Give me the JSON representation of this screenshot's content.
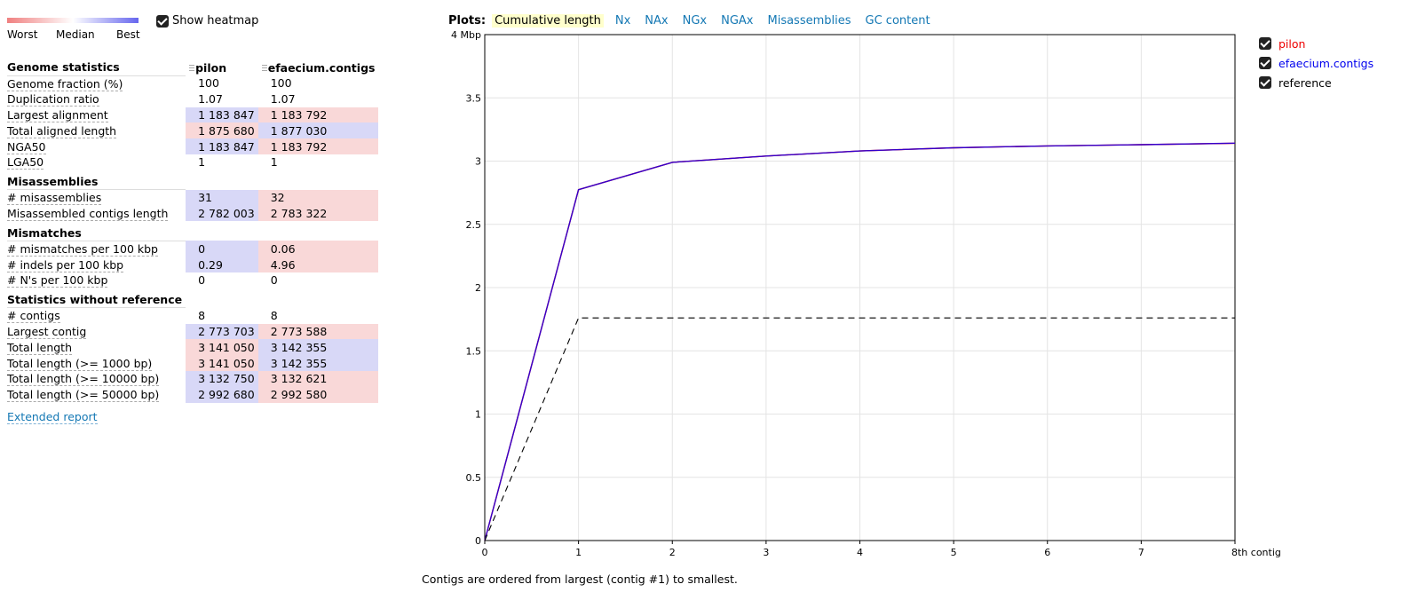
{
  "heatmap": {
    "worst_label": "Worst",
    "median_label": "Median",
    "best_label": "Best",
    "toggle_label": "Show heatmap",
    "colors": {
      "worst": "#f08080",
      "median": "#ffffff",
      "best": "#6666ee",
      "best_cell": "#d8d8f7",
      "worst_cell": "#f9d8d8"
    }
  },
  "report": {
    "assemblies": [
      "pilon",
      "efaecium.contigs"
    ],
    "groups": [
      {
        "name": "Genome statistics",
        "rows": [
          {
            "metric": "Genome fraction (%)",
            "values": [
              "100",
              "100"
            ],
            "heat": [
              "",
              ""
            ]
          },
          {
            "metric": "Duplication ratio",
            "values": [
              "1.07",
              "1.07"
            ],
            "heat": [
              "",
              ""
            ]
          },
          {
            "metric": "Largest alignment",
            "values": [
              "1 183 847",
              "1 183 792"
            ],
            "heat": [
              "best",
              "worst"
            ]
          },
          {
            "metric": "Total aligned length",
            "values": [
              "1 875 680",
              "1 877 030"
            ],
            "heat": [
              "worst",
              "best"
            ]
          },
          {
            "metric": "NGA50",
            "values": [
              "1 183 847",
              "1 183 792"
            ],
            "heat": [
              "best",
              "worst"
            ]
          },
          {
            "metric": "LGA50",
            "values": [
              "1",
              "1"
            ],
            "heat": [
              "",
              ""
            ]
          }
        ]
      },
      {
        "name": "Misassemblies",
        "rows": [
          {
            "metric": "# misassemblies",
            "values": [
              "31",
              "32"
            ],
            "heat": [
              "best",
              "worst"
            ]
          },
          {
            "metric": "Misassembled contigs length",
            "values": [
              "2 782 003",
              "2 783 322"
            ],
            "heat": [
              "best",
              "worst"
            ]
          }
        ]
      },
      {
        "name": "Mismatches",
        "rows": [
          {
            "metric": "# mismatches per 100 kbp",
            "values": [
              "0",
              "0.06"
            ],
            "heat": [
              "best",
              "worst"
            ]
          },
          {
            "metric": "# indels per 100 kbp",
            "values": [
              "0.29",
              "4.96"
            ],
            "heat": [
              "best",
              "worst"
            ]
          },
          {
            "metric": "# N's per 100 kbp",
            "values": [
              "0",
              "0"
            ],
            "heat": [
              "",
              ""
            ]
          }
        ]
      },
      {
        "name": "Statistics without reference",
        "rows": [
          {
            "metric": "# contigs",
            "values": [
              "8",
              "8"
            ],
            "heat": [
              "",
              ""
            ]
          },
          {
            "metric": "Largest contig",
            "values": [
              "2 773 703",
              "2 773 588"
            ],
            "heat": [
              "best",
              "worst"
            ]
          },
          {
            "metric": "Total length",
            "values": [
              "3 141 050",
              "3 142 355"
            ],
            "heat": [
              "worst",
              "best"
            ]
          },
          {
            "metric": "Total length (>= 1000 bp)",
            "values": [
              "3 141 050",
              "3 142 355"
            ],
            "heat": [
              "worst",
              "best"
            ]
          },
          {
            "metric": "Total length (>= 10000 bp)",
            "values": [
              "3 132 750",
              "3 132 621"
            ],
            "heat": [
              "best",
              "worst"
            ]
          },
          {
            "metric": "Total length (>= 50000 bp)",
            "values": [
              "2 992 680",
              "2 992 580"
            ],
            "heat": [
              "best",
              "worst"
            ]
          }
        ]
      }
    ],
    "extended_report_label": "Extended report"
  },
  "plots": {
    "title": "Plots:",
    "tabs": [
      "Cumulative length",
      "Nx",
      "NAx",
      "NGx",
      "NGAx",
      "Misassemblies",
      "GC content"
    ],
    "active_tab": 0
  },
  "chart_data": {
    "type": "line",
    "x_ticks": [
      "0",
      "1",
      "2",
      "3",
      "4",
      "5",
      "6",
      "7",
      "8th contig"
    ],
    "y_ticks": [
      "0",
      "0.5",
      "1",
      "1.5",
      "2",
      "2.5",
      "3",
      "3.5",
      "4 Mbp"
    ],
    "xlim": [
      0,
      8
    ],
    "ylim": [
      0,
      4
    ],
    "grid": true,
    "legend_position": "right",
    "series": [
      {
        "name": "pilon",
        "color": "#ee0000",
        "x": [
          0,
          1,
          2,
          3,
          4,
          5,
          6,
          7,
          8
        ],
        "y": [
          0,
          2.774,
          2.99,
          3.04,
          3.08,
          3.105,
          3.12,
          3.13,
          3.141
        ]
      },
      {
        "name": "efaecium.contigs",
        "color": "#0000ee",
        "x": [
          0,
          1,
          2,
          3,
          4,
          5,
          6,
          7,
          8
        ],
        "y": [
          0,
          2.774,
          2.99,
          3.04,
          3.08,
          3.105,
          3.12,
          3.13,
          3.142
        ]
      },
      {
        "name": "reference",
        "color": "#000000",
        "dashed": true,
        "x": [
          0,
          1,
          8
        ],
        "y": [
          0,
          1.76,
          1.76
        ]
      }
    ]
  },
  "caption": "Contigs are ordered from largest (contig #1) to smallest."
}
